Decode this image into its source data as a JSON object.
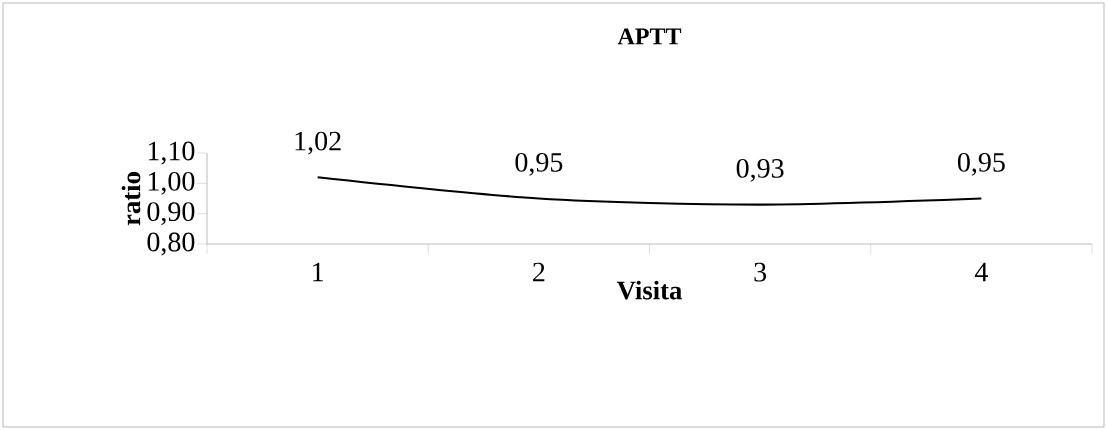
{
  "chart_data": {
    "type": "line",
    "title": "APTT",
    "xlabel": "Visita",
    "ylabel": "ratio",
    "categories": [
      "1",
      "2",
      "3",
      "4"
    ],
    "values": [
      1.02,
      0.95,
      0.93,
      0.95
    ],
    "value_labels": [
      "1,02",
      "0,95",
      "0,93",
      "0,95"
    ],
    "color": "#000000",
    "ylim": [
      0.8,
      1.1
    ],
    "yticks": [
      {
        "value": 0.8,
        "label": "0,80"
      },
      {
        "value": 0.9,
        "label": "0,90"
      },
      {
        "value": 1.0,
        "label": "1,00"
      },
      {
        "value": 1.1,
        "label": "1,10"
      }
    ],
    "line_style": "solid"
  }
}
